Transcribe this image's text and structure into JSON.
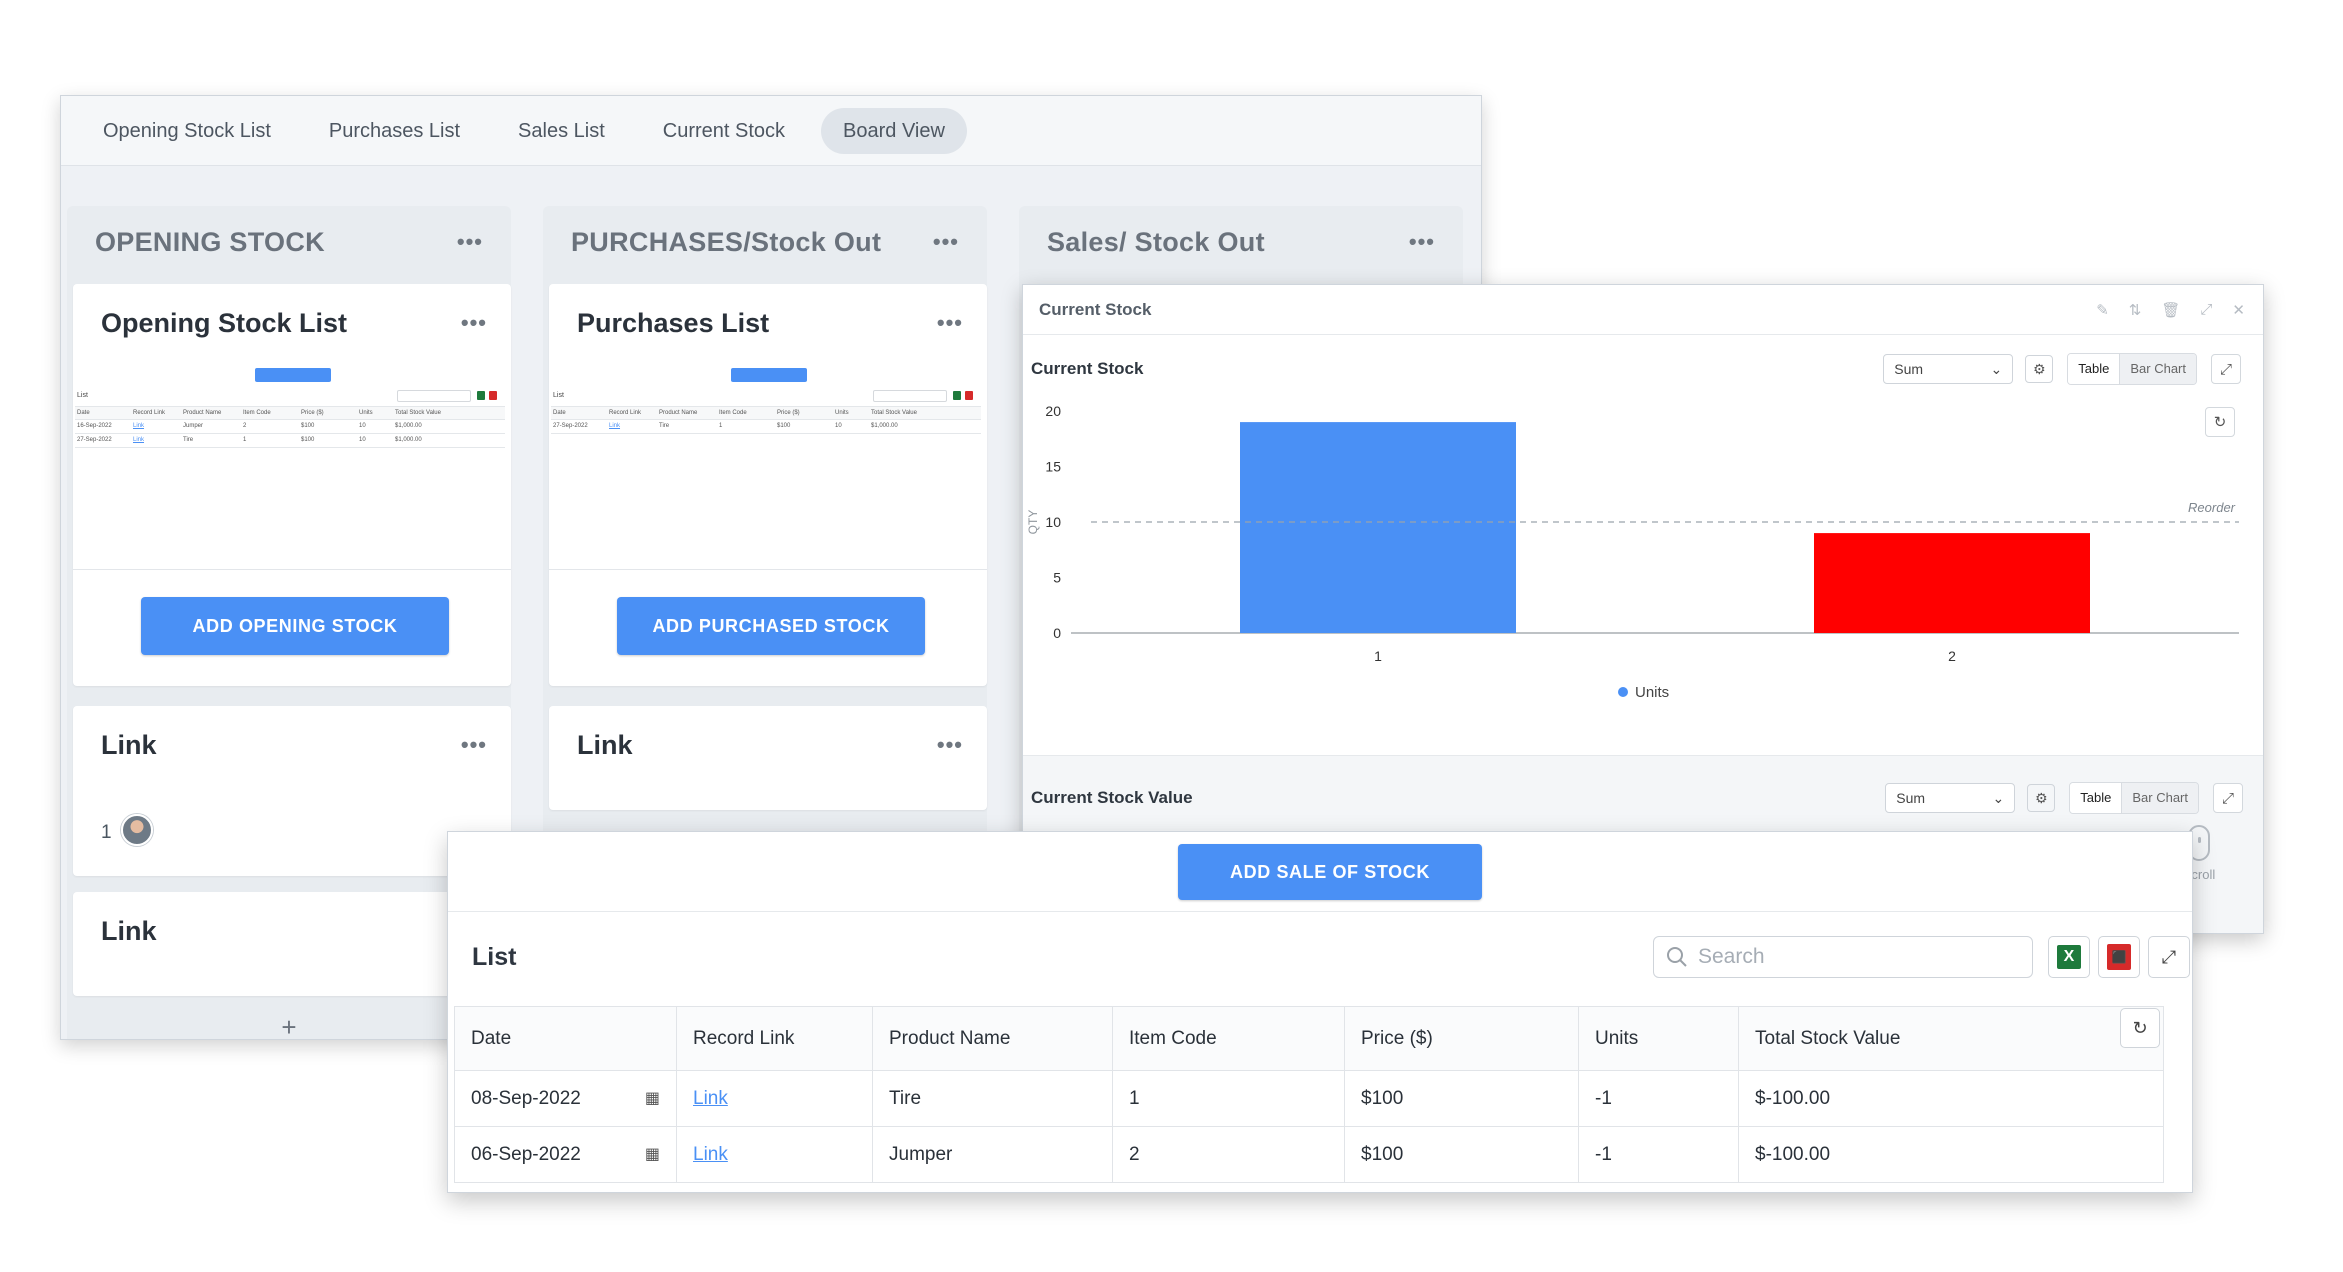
{
  "board": {
    "tabs": [
      {
        "label": "Opening Stock List"
      },
      {
        "label": "Purchases List"
      },
      {
        "label": "Sales List"
      },
      {
        "label": "Current Stock"
      },
      {
        "label": "Board View"
      }
    ],
    "columns": [
      {
        "title": "OPENING STOCK"
      },
      {
        "title": "PURCHASES/Stock Out"
      },
      {
        "title": "Sales/ Stock Out"
      }
    ],
    "opening_card": {
      "title": "Opening Stock List",
      "button": "ADD OPENING STOCK",
      "thumb": {
        "list_label": "List",
        "headers": [
          "Date",
          "Record Link",
          "Product Name",
          "Item Code",
          "Price ($)",
          "Units",
          "Total Stock Value"
        ],
        "rows": [
          [
            "16-Sep-2022",
            "Link",
            "Jumper",
            "2",
            "$100",
            "10",
            "$1,000.00"
          ],
          [
            "27-Sep-2022",
            "Link",
            "Tire",
            "1",
            "$100",
            "10",
            "$1,000.00"
          ]
        ]
      }
    },
    "purchases_card": {
      "title": "Purchases List",
      "button": "ADD PURCHASED STOCK",
      "thumb": {
        "list_label": "List",
        "headers": [
          "Date",
          "Record Link",
          "Product Name",
          "Item Code",
          "Price ($)",
          "Units",
          "Total Stock Value"
        ],
        "rows": [
          [
            "27-Sep-2022",
            "Link",
            "Tire",
            "1",
            "$100",
            "10",
            "$1,000.00"
          ]
        ]
      }
    },
    "link_cards": [
      {
        "title": "Link",
        "count": "1"
      },
      {
        "title": "Link"
      },
      {
        "title": "Link"
      }
    ],
    "add_label": "+"
  },
  "current_stock": {
    "window_title": "Current Stock",
    "section1": {
      "title": "Current Stock",
      "aggregate": "Sum",
      "view_table": "Table",
      "view_chart": "Bar Chart"
    },
    "section2": {
      "title": "Current Stock Value",
      "aggregate": "Sum",
      "view_table": "Table",
      "view_chart": "Bar Chart"
    },
    "scroll_label": "Scroll"
  },
  "chart_data": {
    "type": "bar",
    "categories": [
      "1",
      "2"
    ],
    "series": [
      {
        "name": "Units",
        "values": [
          19,
          9
        ]
      }
    ],
    "colors": [
      "#4a90f5",
      "#ff0000"
    ],
    "ylabel": "QTY",
    "ylim": [
      0,
      20
    ],
    "yticks": [
      0,
      5,
      10,
      15,
      20
    ],
    "reference_line": {
      "value": 10,
      "label": "Reorder"
    },
    "legend": "bottom"
  },
  "sales": {
    "button": "ADD SALE OF STOCK",
    "list_title": "List",
    "search_placeholder": "Search",
    "headers": [
      "Date",
      "Record Link",
      "Product Name",
      "Item Code",
      "Price ($)",
      "Units",
      "Total Stock Value"
    ],
    "rows": [
      {
        "date": "08-Sep-2022",
        "link": "Link",
        "product": "Tire",
        "code": "1",
        "price": "$100",
        "units": "-1",
        "total": "$-100.00"
      },
      {
        "date": "06-Sep-2022",
        "link": "Link",
        "product": "Jumper",
        "code": "2",
        "price": "$100",
        "units": "-1",
        "total": "$-100.00"
      }
    ]
  },
  "icons": {
    "dots": "more-dots-icon",
    "gear": "gear-icon",
    "expand": "expand-icon",
    "refresh": "refresh-icon",
    "search": "search-icon",
    "excel": "excel-icon",
    "pdf": "pdf-icon",
    "calendar": "calendar-icon"
  }
}
